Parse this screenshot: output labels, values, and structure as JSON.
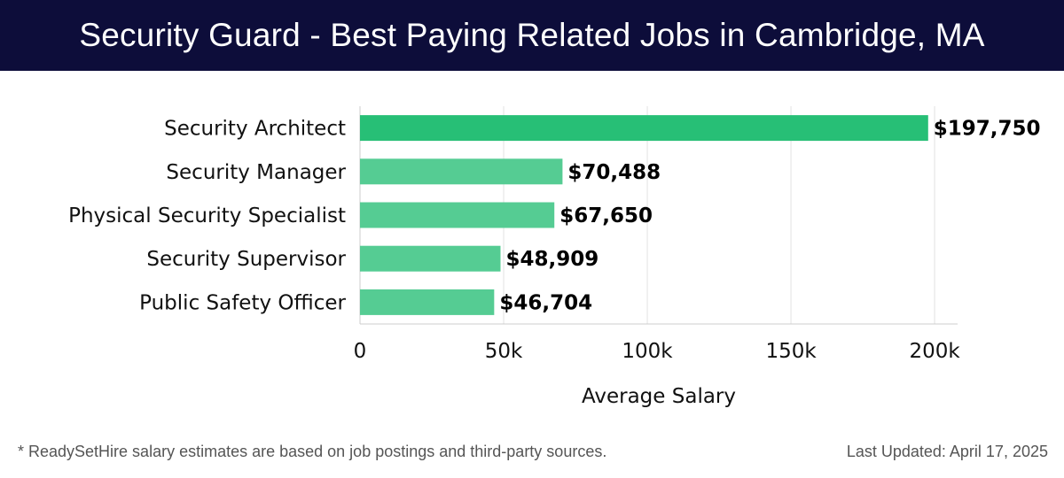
{
  "header": {
    "title": "Security Guard - Best Paying Related Jobs in Cambridge, MA"
  },
  "chart_data": {
    "type": "bar",
    "orientation": "horizontal",
    "title": "Security Guard - Best Paying Related Jobs in Cambridge, MA",
    "xlabel": "Average Salary",
    "ylabel": "",
    "xlim": [
      0,
      208000
    ],
    "ticks": [
      0,
      50000,
      100000,
      150000,
      200000
    ],
    "tick_labels": [
      "0",
      "50k",
      "100k",
      "150k",
      "200k"
    ],
    "grid": true,
    "categories": [
      "Security Architect",
      "Security Manager",
      "Physical Security Specialist",
      "Security Supervisor",
      "Public Safety Officer"
    ],
    "values": [
      197750,
      70488,
      67650,
      48909,
      46704
    ],
    "value_labels": [
      "$197,750",
      "$70,488",
      "$67,650",
      "$48,909",
      "$46,704"
    ],
    "colors": {
      "highlight": "#27bf76",
      "bar": "#55cc93",
      "grid": "#e2e2e2",
      "axis": "#cccccc"
    }
  },
  "footer": {
    "note": "* ReadySetHire salary estimates are based on job postings and third-party sources.",
    "updated": "Last Updated: April 17, 2025"
  }
}
